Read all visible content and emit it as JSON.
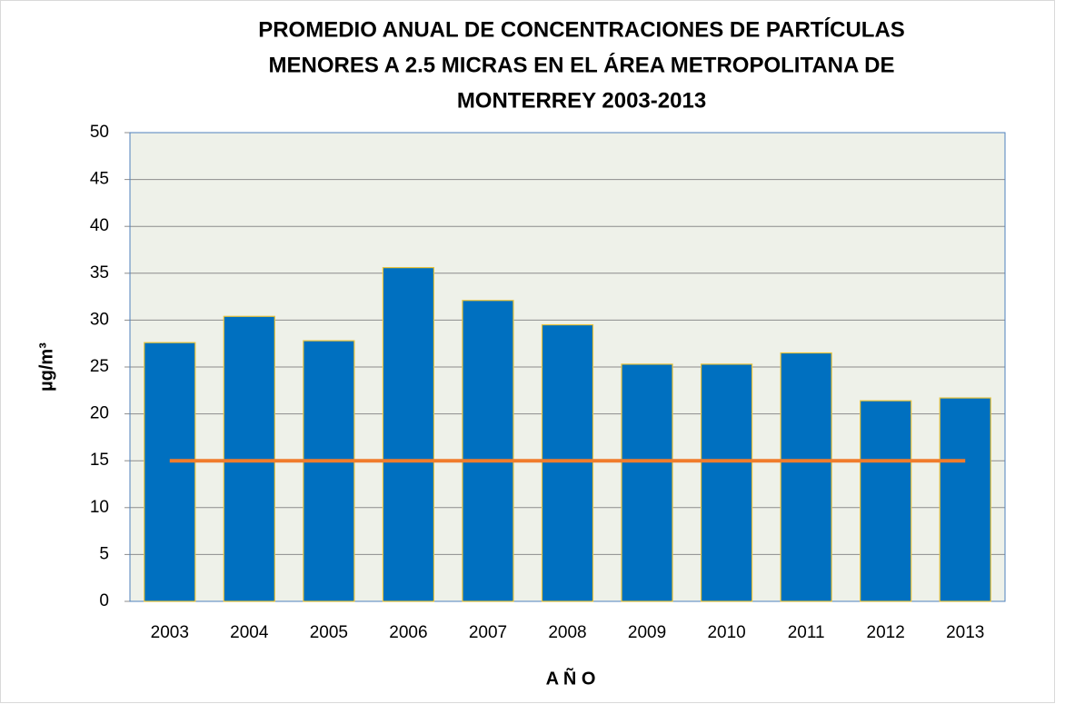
{
  "chart_data": {
    "type": "bar",
    "title": [
      "PROMEDIO ANUAL DE CONCENTRACIONES DE PARTÍCULAS",
      "MENORES A 2.5 MICRAS EN EL ÁREA METROPOLITANA DE",
      "MONTERREY  2003-2013"
    ],
    "x_label": "A Ñ O",
    "y_label": "µg/m³",
    "categories": [
      "2003",
      "2004",
      "2005",
      "2006",
      "2007",
      "2008",
      "2009",
      "2010",
      "2011",
      "2012",
      "2013"
    ],
    "series": [
      {
        "type": "bar",
        "color": "#0070c0",
        "values": [
          27.6,
          30.4,
          27.8,
          35.6,
          32.1,
          29.5,
          25.3,
          25.3,
          26.5,
          21.4,
          21.7
        ]
      },
      {
        "type": "line",
        "color": "#f07c2c",
        "values": [
          15,
          15,
          15,
          15,
          15,
          15,
          15,
          15,
          15,
          15,
          15
        ]
      }
    ],
    "ylim": [
      0,
      50
    ],
    "yticks": [
      0,
      5,
      10,
      15,
      20,
      25,
      30,
      35,
      40,
      45,
      50
    ],
    "grid": true
  }
}
